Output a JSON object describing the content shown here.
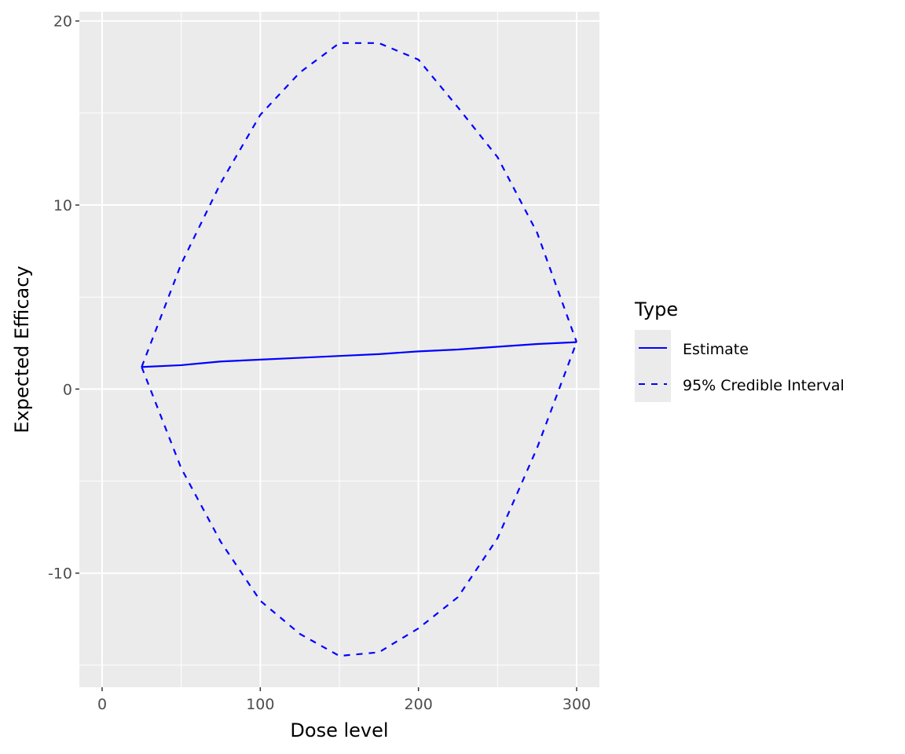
{
  "chart_data": {
    "type": "line",
    "xlabel": "Dose level",
    "ylabel": "Expected Efficacy",
    "xlim": [
      -14.4,
      314.4
    ],
    "ylim": [
      -16.2,
      20.5
    ],
    "xticks": [
      0,
      100,
      200,
      300
    ],
    "xtick_labels": [
      "0",
      "100",
      "200",
      "300"
    ],
    "yticks": [
      -10,
      0,
      10,
      20
    ],
    "ytick_labels": [
      "-10",
      "0",
      "10",
      "20"
    ],
    "grid": true,
    "legend": {
      "title": "Type",
      "placement": "right",
      "entries": [
        "Estimate",
        "95% Credible Interval"
      ]
    },
    "color": "#0000FF",
    "x": [
      25,
      50,
      75,
      100,
      125,
      150,
      175,
      200,
      225,
      250,
      275,
      300
    ],
    "series": [
      {
        "name": "Estimate",
        "style": "solid",
        "values": [
          1.2,
          1.3,
          1.5,
          1.6,
          1.7,
          1.8,
          1.9,
          2.05,
          2.15,
          2.3,
          2.45,
          2.55
        ]
      },
      {
        "name": "95% Credible Interval",
        "style": "dashed",
        "values": [
          1.2,
          6.8,
          11.2,
          14.9,
          17.2,
          18.8,
          18.8,
          17.9,
          15.3,
          12.6,
          8.5,
          2.55
        ]
      },
      {
        "name": "95% Credible Interval",
        "style": "dashed",
        "values": [
          1.2,
          -4.3,
          -8.3,
          -11.5,
          -13.3,
          -14.5,
          -14.3,
          -13.0,
          -11.3,
          -8.1,
          -3.2,
          2.55
        ]
      }
    ]
  }
}
